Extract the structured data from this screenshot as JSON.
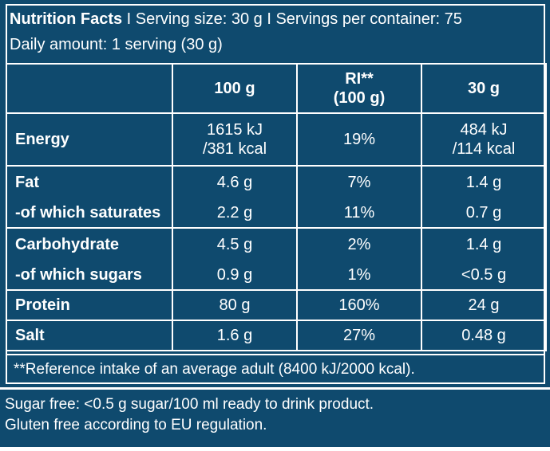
{
  "header": {
    "title": "Nutrition Facts",
    "separator": " I ",
    "serving_size": "Serving size: 30 g",
    "servings_per_container": "Servings per container: 75",
    "daily_amount": "Daily amount: 1 serving (30 g)"
  },
  "table": {
    "columns": [
      "",
      "100 g",
      "RI**",
      "(100 g)",
      "30 g"
    ],
    "rows": [
      {
        "name": "Energy",
        "per100_a": "1615 kJ",
        "per100_b": "/381 kcal",
        "ri": "19%",
        "per30_a": "484 kJ",
        "per30_b": "/114 kcal"
      },
      {
        "name": "Fat",
        "per100": "4.6 g",
        "ri": "7%",
        "per30": "1.4 g"
      },
      {
        "name": "-of which saturates",
        "per100": "2.2 g",
        "ri": "11%",
        "per30": "0.7 g"
      },
      {
        "name": "Carbohydrate",
        "per100": "4.5 g",
        "ri": "2%",
        "per30": "1.4 g"
      },
      {
        "name": "-of which sugars",
        "per100": "0.9 g",
        "ri": "1%",
        "per30": "<0.5 g"
      },
      {
        "name": "Protein",
        "per100": "80 g",
        "ri": "160%",
        "per30": "24 g"
      },
      {
        "name": "Salt",
        "per100": "1.6 g",
        "ri": "27%",
        "per30": "0.48 g"
      }
    ]
  },
  "footnote": "**Reference intake of an average adult (8400 kJ/2000 kcal).",
  "notes": [
    "Sugar free: <0.5 g sugar/100 ml ready to drink product.",
    "Gluten free according to EU regulation."
  ],
  "colors": {
    "background": "#0f4a6e",
    "text": "#ffffff"
  }
}
